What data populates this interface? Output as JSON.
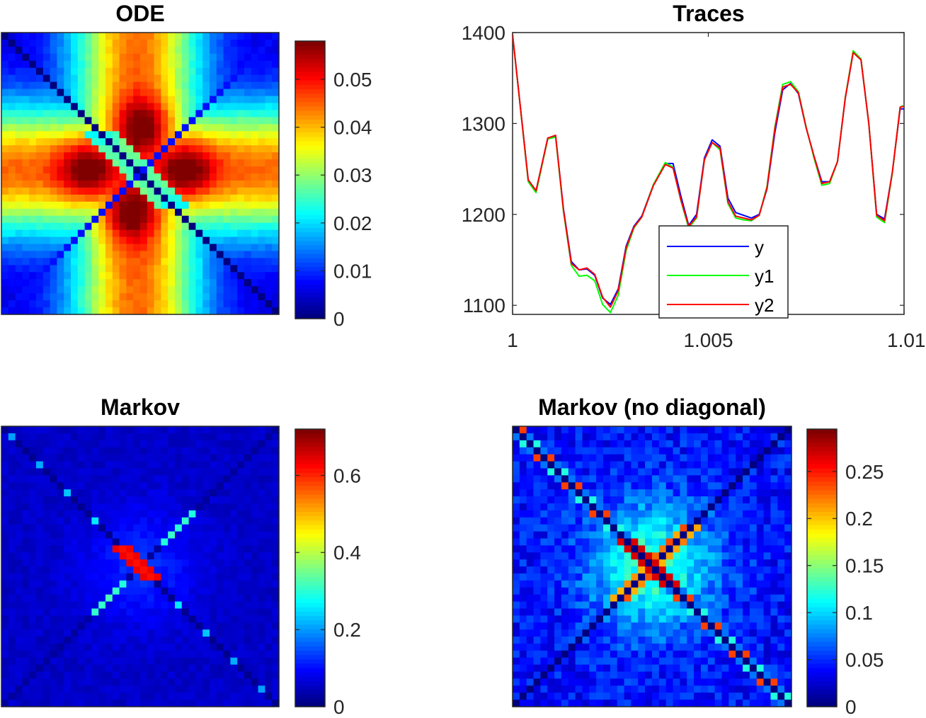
{
  "chart_data": [
    {
      "type": "heatmap",
      "title": "ODE",
      "pattern": "cross",
      "grid_size": 40,
      "clim": [
        0,
        0.058
      ],
      "colorbar_ticks": [
        0,
        0.01,
        0.02,
        0.03,
        0.04,
        0.05
      ],
      "colorbar_labels": [
        "0",
        "0.01",
        "0.02",
        "0.03",
        "0.04",
        "0.05"
      ],
      "colormap": "jet"
    },
    {
      "type": "line",
      "title": "Traces",
      "xlim": [
        1,
        1.01
      ],
      "ylim": [
        1090,
        1400
      ],
      "xticks": [
        1,
        1.005,
        1.01
      ],
      "xtick_labels": [
        "1",
        "1.005",
        "1.01"
      ],
      "yticks": [
        1100,
        1200,
        1300,
        1400
      ],
      "ytick_labels": [
        "1100",
        "1200",
        "1300",
        "1400"
      ],
      "x": [
        1.0,
        1.0004,
        1.0006,
        1.0009,
        1.0011,
        1.0013,
        1.0015,
        1.0017,
        1.0019,
        1.0021,
        1.0023,
        1.0025,
        1.0027,
        1.0029,
        1.0031,
        1.0033,
        1.0036,
        1.0039,
        1.0041,
        1.0043,
        1.0045,
        1.0047,
        1.0049,
        1.0051,
        1.0053,
        1.0055,
        1.0057,
        1.0059,
        1.0061,
        1.0063,
        1.0065,
        1.0067,
        1.0069,
        1.0071,
        1.0073,
        1.0075,
        1.0077,
        1.0079,
        1.0081,
        1.0083,
        1.0085,
        1.0087,
        1.0089,
        1.0091,
        1.0093,
        1.0095,
        1.0097,
        1.0099,
        1.01
      ],
      "series": [
        {
          "name": "y",
          "color": "#0000ff",
          "values": [
            1398,
            1238,
            1226,
            1284,
            1286,
            1206,
            1148,
            1139,
            1140,
            1133,
            1108,
            1101,
            1118,
            1165,
            1187,
            1198,
            1233,
            1256,
            1256,
            1220,
            1188,
            1200,
            1262,
            1282,
            1275,
            1218,
            1202,
            1199,
            1196,
            1200,
            1228,
            1290,
            1337,
            1344,
            1333,
            1295,
            1264,
            1236,
            1236,
            1258,
            1328,
            1378,
            1370,
            1300,
            1200,
            1195,
            1246,
            1316,
            1316
          ]
        },
        {
          "name": "y1",
          "color": "#00ff00",
          "values": [
            1398,
            1236,
            1224,
            1283,
            1285,
            1203,
            1144,
            1132,
            1133,
            1127,
            1101,
            1092,
            1111,
            1160,
            1185,
            1197,
            1233,
            1257,
            1252,
            1215,
            1185,
            1196,
            1260,
            1279,
            1271,
            1212,
            1196,
            1194,
            1193,
            1199,
            1231,
            1296,
            1343,
            1346,
            1335,
            1296,
            1262,
            1232,
            1234,
            1258,
            1329,
            1380,
            1371,
            1300,
            1197,
            1191,
            1245,
            1318,
            1320
          ]
        },
        {
          "name": "y2",
          "color": "#ff0000",
          "values": [
            1398,
            1238,
            1226,
            1284,
            1287,
            1205,
            1146,
            1139,
            1141,
            1134,
            1109,
            1098,
            1116,
            1163,
            1186,
            1197,
            1232,
            1255,
            1251,
            1216,
            1187,
            1197,
            1260,
            1279,
            1273,
            1214,
            1198,
            1196,
            1194,
            1199,
            1229,
            1294,
            1340,
            1343,
            1334,
            1295,
            1264,
            1234,
            1236,
            1258,
            1328,
            1378,
            1370,
            1300,
            1199,
            1193,
            1246,
            1318,
            1319
          ]
        }
      ],
      "legend": [
        "y",
        "y1",
        "y2"
      ],
      "legend_location": "bottom-center"
    },
    {
      "type": "heatmap",
      "title": "Markov",
      "pattern": "diagonal-with-center",
      "grid_size": 40,
      "clim": [
        0,
        0.72
      ],
      "colorbar_ticks": [
        0,
        0.2,
        0.4,
        0.6
      ],
      "colorbar_labels": [
        "0",
        "0.2",
        "0.4",
        "0.6"
      ],
      "colormap": "jet"
    },
    {
      "type": "heatmap",
      "title": "Markov (no diagonal)",
      "pattern": "diagonal-zeroed",
      "grid_size": 40,
      "clim": [
        0,
        0.295
      ],
      "colorbar_ticks": [
        0,
        0.05,
        0.1,
        0.15,
        0.2,
        0.25
      ],
      "colorbar_labels": [
        "0",
        "0.05",
        "0.1",
        "0.15",
        "0.2",
        "0.25"
      ],
      "colormap": "jet"
    }
  ]
}
